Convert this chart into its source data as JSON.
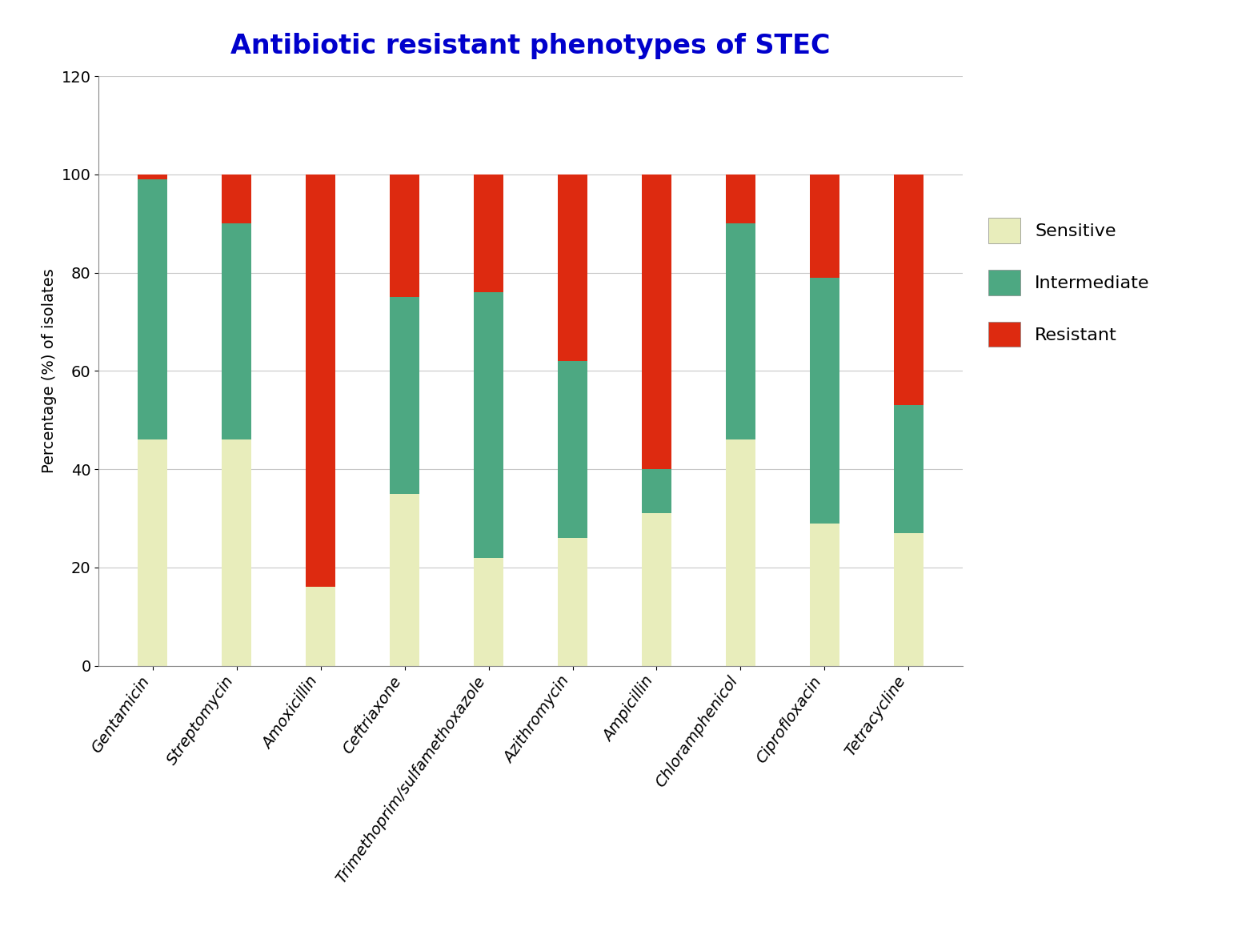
{
  "title": "Antibiotic resistant phenotypes of STEC",
  "title_color": "#0000CC",
  "ylabel": "Percentage (%) of isolates",
  "categories": [
    "Gentamicin",
    "Streptomycin",
    "Amoxicillin",
    "Ceftriaxone",
    "Trimethoprim/sulfamethoxazole",
    "Azithromycin",
    "Ampicillin",
    "Chloramphenicol",
    "Ciprofloxacin",
    "Tetracycline"
  ],
  "sensitive": [
    46,
    46,
    16,
    35,
    22,
    26,
    31,
    46,
    29,
    27
  ],
  "intermediate": [
    53,
    44,
    0,
    40,
    54,
    36,
    9,
    44,
    50,
    26
  ],
  "resistant": [
    1,
    10,
    84,
    25,
    24,
    38,
    60,
    10,
    21,
    47
  ],
  "color_sensitive": "#E8EDBB",
  "color_intermediate": "#4DA882",
  "color_resistant": "#DD2A10",
  "ylim": [
    0,
    120
  ],
  "yticks": [
    0,
    20,
    40,
    60,
    80,
    100,
    120
  ],
  "bar_width": 0.35,
  "legend_labels": [
    "Sensitive",
    "Intermediate",
    "Resistant"
  ],
  "figsize": [
    15.42,
    11.88
  ],
  "dpi": 100
}
